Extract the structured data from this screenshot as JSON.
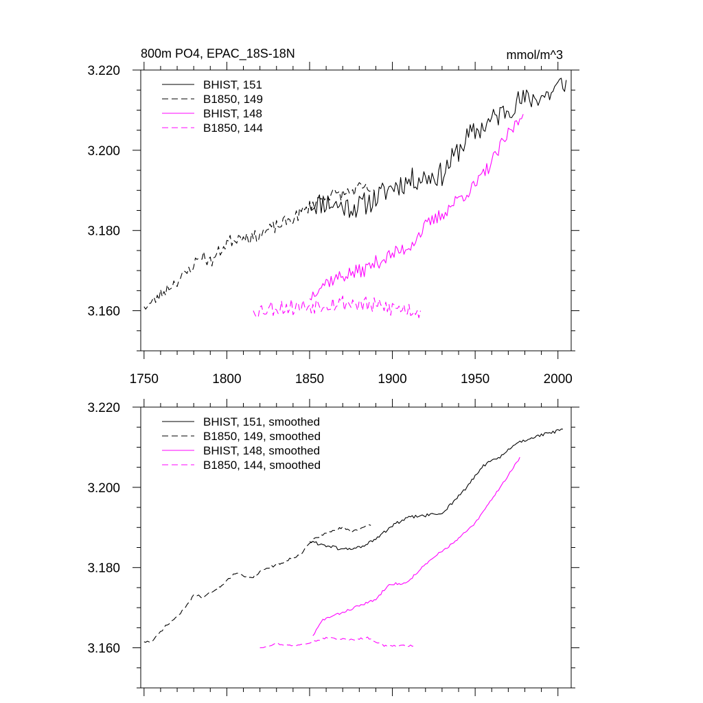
{
  "header": {
    "title": "800m PO4, EPAC_18S-18N",
    "units": "mmol/m^3"
  },
  "colors": {
    "black": "#000000",
    "magenta": "#ff00ff"
  },
  "chart_data": [
    {
      "type": "line",
      "title": "800m PO4, EPAC_18S-18N",
      "units": "mmol/m^3",
      "xlim": [
        1748,
        2008
      ],
      "ylim": [
        3.15,
        3.22
      ],
      "x_tick_labels": [
        "1750",
        "1800",
        "1850",
        "1900",
        "1950",
        "2000"
      ],
      "y_tick_labels": [
        "3.220",
        "3.200",
        "3.180",
        "3.160"
      ],
      "legend_position": "top-left",
      "series": [
        {
          "name": "BHIST, 151",
          "color": "#000000",
          "dash": "solid",
          "x_start": 1850,
          "x_end": 2005,
          "y_start": 3.1865,
          "y_end": 3.2175,
          "noise": 0.003,
          "seed": 11,
          "anchors": [
            [
              1850,
              3.1865
            ],
            [
              1860,
              3.187
            ],
            [
              1870,
              3.186
            ],
            [
              1880,
              3.186
            ],
            [
              1890,
              3.188
            ],
            [
              1900,
              3.191
            ],
            [
              1915,
              3.193
            ],
            [
              1930,
              3.194
            ],
            [
              1945,
              3.203
            ],
            [
              1955,
              3.206
            ],
            [
              1965,
              3.209
            ],
            [
              1975,
              3.212
            ],
            [
              1985,
              3.213
            ],
            [
              1995,
              3.214
            ],
            [
              2005,
              3.2175
            ]
          ]
        },
        {
          "name": "B1850, 149",
          "color": "#000000",
          "dash": "dashed",
          "x_start": 1750,
          "x_end": 1889,
          "y_start": 3.161,
          "y_end": 3.19,
          "noise": 0.0016,
          "seed": 23,
          "anchors": [
            [
              1750,
              3.161
            ],
            [
              1755,
              3.162
            ],
            [
              1765,
              3.166
            ],
            [
              1775,
              3.169
            ],
            [
              1785,
              3.174
            ],
            [
              1790,
              3.172
            ],
            [
              1800,
              3.177
            ],
            [
              1810,
              3.179
            ],
            [
              1815,
              3.178
            ],
            [
              1820,
              3.179
            ],
            [
              1830,
              3.181
            ],
            [
              1840,
              3.183
            ],
            [
              1850,
              3.186
            ],
            [
              1860,
              3.189
            ],
            [
              1870,
              3.189
            ],
            [
              1880,
              3.1905
            ],
            [
              1889,
              3.19
            ]
          ]
        },
        {
          "name": "BHIST, 148",
          "color": "#ff00ff",
          "dash": "solid",
          "x_start": 1850,
          "x_end": 1979,
          "y_start": 3.163,
          "y_end": 3.209,
          "noise": 0.0018,
          "seed": 37,
          "anchors": [
            [
              1850,
              3.163
            ],
            [
              1855,
              3.166
            ],
            [
              1862,
              3.1675
            ],
            [
              1872,
              3.169
            ],
            [
              1882,
              3.17
            ],
            [
              1890,
              3.172
            ],
            [
              1900,
              3.174
            ],
            [
              1910,
              3.176
            ],
            [
              1920,
              3.181
            ],
            [
              1930,
              3.184
            ],
            [
              1940,
              3.188
            ],
            [
              1950,
              3.191
            ],
            [
              1960,
              3.197
            ],
            [
              1970,
              3.204
            ],
            [
              1979,
              3.209
            ]
          ]
        },
        {
          "name": "B1850, 144",
          "color": "#ff00ff",
          "dash": "dashed",
          "x_start": 1816,
          "x_end": 1917,
          "y_start": 3.16,
          "y_end": 3.16,
          "noise": 0.0022,
          "seed": 53,
          "anchors": [
            [
              1816,
              3.16
            ],
            [
              1830,
              3.161
            ],
            [
              1845,
              3.161
            ],
            [
              1860,
              3.162
            ],
            [
              1875,
              3.162
            ],
            [
              1890,
              3.161
            ],
            [
              1905,
              3.1605
            ],
            [
              1917,
              3.16
            ]
          ]
        }
      ]
    },
    {
      "type": "line",
      "xlim": [
        1748,
        2008
      ],
      "ylim": [
        3.15,
        3.22
      ],
      "y_tick_labels": [
        "3.220",
        "3.200",
        "3.180",
        "3.160"
      ],
      "legend_position": "top-left",
      "series": [
        {
          "name": "BHIST, 151, smoothed",
          "color": "#000000",
          "dash": "solid",
          "x_start": 1850,
          "x_end": 2003,
          "y_start": 3.1865,
          "y_end": 3.2145,
          "noise": 0.0004,
          "seed": 61,
          "anchors": [
            [
              1850,
              3.1865
            ],
            [
              1860,
              3.1855
            ],
            [
              1870,
              3.1845
            ],
            [
              1880,
              3.185
            ],
            [
              1890,
              3.187
            ],
            [
              1900,
              3.1905
            ],
            [
              1910,
              3.1925
            ],
            [
              1920,
              3.193
            ],
            [
              1930,
              3.1935
            ],
            [
              1945,
              3.2
            ],
            [
              1955,
              3.2055
            ],
            [
              1965,
              3.2075
            ],
            [
              1975,
              3.211
            ],
            [
              1985,
              3.2125
            ],
            [
              1995,
              3.2135
            ],
            [
              2003,
              3.2145
            ]
          ]
        },
        {
          "name": "B1850, 149, smoothed",
          "color": "#000000",
          "dash": "dashed",
          "x_start": 1750,
          "x_end": 1887,
          "y_start": 3.1615,
          "y_end": 3.1905,
          "noise": 0.0003,
          "seed": 71,
          "anchors": [
            [
              1750,
              3.1615
            ],
            [
              1755,
              3.1615
            ],
            [
              1762,
              3.165
            ],
            [
              1772,
              3.1685
            ],
            [
              1781,
              3.1735
            ],
            [
              1785,
              3.1725
            ],
            [
              1795,
              3.175
            ],
            [
              1805,
              3.1785
            ],
            [
              1815,
              3.1775
            ],
            [
              1822,
              3.1795
            ],
            [
              1835,
              3.1815
            ],
            [
              1845,
              3.1835
            ],
            [
              1852,
              3.187
            ],
            [
              1860,
              3.1885
            ],
            [
              1870,
              3.19
            ],
            [
              1875,
              3.189
            ],
            [
              1887,
              3.1905
            ]
          ]
        },
        {
          "name": "BHIST, 148, smoothed",
          "color": "#ff00ff",
          "dash": "solid",
          "x_start": 1852,
          "x_end": 1977,
          "y_start": 3.163,
          "y_end": 3.2075,
          "noise": 0.0003,
          "seed": 83,
          "anchors": [
            [
              1852,
              3.163
            ],
            [
              1858,
              3.167
            ],
            [
              1868,
              3.1685
            ],
            [
              1880,
              3.1705
            ],
            [
              1890,
              3.172
            ],
            [
              1898,
              3.176
            ],
            [
              1908,
              3.176
            ],
            [
              1918,
              3.18
            ],
            [
              1928,
              3.1835
            ],
            [
              1938,
              3.1865
            ],
            [
              1950,
              3.191
            ],
            [
              1960,
              3.197
            ],
            [
              1970,
              3.203
            ],
            [
              1977,
              3.2075
            ]
          ]
        },
        {
          "name": "B1850, 144, smoothed",
          "color": "#ff00ff",
          "dash": "dashed",
          "x_start": 1820,
          "x_end": 1913,
          "y_start": 3.16,
          "y_end": 3.1605,
          "noise": 0.0002,
          "seed": 97,
          "anchors": [
            [
              1820,
              3.16
            ],
            [
              1830,
              3.161
            ],
            [
              1840,
              3.1605
            ],
            [
              1852,
              3.1615
            ],
            [
              1860,
              3.1625
            ],
            [
              1875,
              3.162
            ],
            [
              1885,
              3.1625
            ],
            [
              1895,
              3.1605
            ],
            [
              1905,
              3.1605
            ],
            [
              1913,
              3.1605
            ]
          ]
        }
      ]
    }
  ]
}
